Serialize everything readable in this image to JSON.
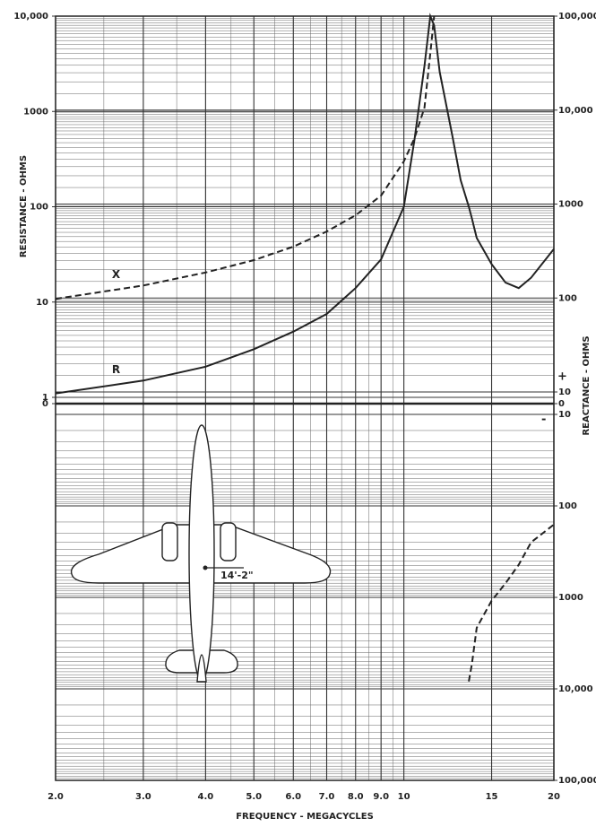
{
  "chart_data": {
    "type": "line",
    "x_label": "FREQUENCY - MEGACYCLES",
    "y_label": "RESISTANCE - OHMS",
    "y2_label": "REACTANCE - OHMS",
    "xscale": "log",
    "yscale": "log",
    "grid": true,
    "x": [
      2,
      3,
      4,
      5,
      6,
      7,
      8,
      9,
      10,
      10.5,
      11,
      11.3,
      11.5,
      11.8,
      12.5,
      13,
      13.5,
      13.7,
      14,
      15,
      16,
      17,
      18,
      20
    ],
    "xlim": [
      2,
      20
    ],
    "xticks": [
      {
        "value": 2,
        "label": "2.0"
      },
      {
        "value": 3,
        "label": "3.0"
      },
      {
        "value": 4,
        "label": "4.0"
      },
      {
        "value": 5,
        "label": "5.0"
      },
      {
        "value": 6,
        "label": "6.0"
      },
      {
        "value": 7,
        "label": "7.0"
      },
      {
        "value": 8,
        "label": "8.0"
      },
      {
        "value": 9,
        "label": "9.0"
      },
      10,
      15,
      20
    ],
    "ylim": [
      0,
      10000
    ],
    "yticks": [
      0,
      1,
      10,
      100,
      1000,
      {
        "value": 10000,
        "label": "10,000"
      }
    ],
    "y2lim": [
      -100000,
      100000
    ],
    "y2ticks": [
      {
        "value": 100000,
        "label": "100,000"
      },
      {
        "value": 10000,
        "label": "10,000"
      },
      1000,
      100,
      10,
      0,
      {
        "value": -10,
        "label": "10"
      },
      {
        "value": -100,
        "label": "100"
      },
      {
        "value": -1000,
        "label": "1000"
      },
      {
        "value": -10000,
        "label": "10,000"
      },
      {
        "value": -100000,
        "label": "100,000"
      }
    ],
    "series": [
      {
        "name": "R",
        "color": "#222222",
        "dash": false,
        "values": [
          1.1,
          1.5,
          2.1,
          3.2,
          4.9,
          7.5,
          14,
          28,
          100,
          500,
          3000,
          10000,
          8000,
          2600,
          570,
          190,
          100,
          75,
          47,
          25,
          16,
          14,
          18,
          36
        ]
      },
      {
        "name": "X",
        "color": "#222222",
        "dash": true,
        "axis": "y2",
        "values": [
          98,
          136,
          187,
          253,
          352,
          510,
          760,
          1230,
          2850,
          5000,
          10600,
          40000,
          100000,
          null,
          null,
          null,
          -8300,
          -5300,
          -2150,
          -1090,
          -700,
          -440,
          -250,
          -160
        ]
      }
    ],
    "annotations": [
      "+",
      "-",
      "14'-2\""
    ]
  }
}
